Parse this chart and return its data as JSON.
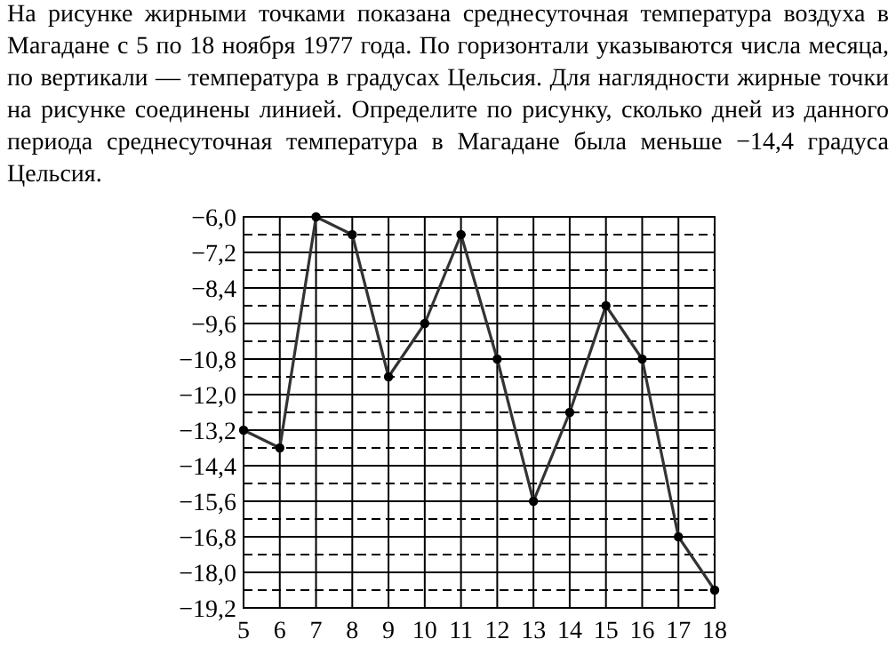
{
  "chart_data": {
    "type": "line",
    "title": "На рисунке жирными точками показана среднесуточная температура воздуха в Магадане с 5 по 18 ноября 1977 года. По горизонтали указываются числа месяца, по вертикали — температура в градусах Цельсия. Для наглядности жирные точки на рисунке соединены линией. Определите по рисунку, сколько дней из данного периода среднесуточная температура в Магадане была меньше −14,4 градуса Цельсия.",
    "x": [
      5,
      6,
      7,
      8,
      9,
      10,
      11,
      12,
      13,
      14,
      15,
      16,
      17,
      18
    ],
    "series": [
      {
        "color": "#333333",
        "values": [
          -13.2,
          -13.8,
          -6.0,
          -6.6,
          -11.4,
          -9.6,
          -6.6,
          -10.8,
          -15.6,
          -12.6,
          -9.0,
          -10.8,
          -16.8,
          -18.6
        ]
      }
    ],
    "xlim": [
      5,
      18
    ],
    "xticks": [
      5,
      6,
      7,
      8,
      9,
      10,
      11,
      12,
      13,
      14,
      15,
      16,
      17,
      18
    ],
    "ylim": [
      -19.2,
      -6.0
    ],
    "yticks": [
      {
        "value": -6.0,
        "label": "−6,0"
      },
      {
        "value": -6.6,
        "label": null
      },
      {
        "value": -7.2,
        "label": "−7,2"
      },
      {
        "value": -7.8,
        "label": null
      },
      {
        "value": -8.4,
        "label": "−8,4"
      },
      {
        "value": -9.0,
        "label": null
      },
      {
        "value": -9.6,
        "label": "−9,6"
      },
      {
        "value": -10.2,
        "label": null
      },
      {
        "value": -10.8,
        "label": "−10,8"
      },
      {
        "value": -11.4,
        "label": null
      },
      {
        "value": -12.0,
        "label": "−12,0"
      },
      {
        "value": -12.6,
        "label": null
      },
      {
        "value": -13.2,
        "label": "−13,2"
      },
      {
        "value": -13.8,
        "label": null
      },
      {
        "value": -14.4,
        "label": "−14,4"
      },
      {
        "value": -15.0,
        "label": null
      },
      {
        "value": -15.6,
        "label": "−15,6"
      },
      {
        "value": -16.2,
        "label": null
      },
      {
        "value": -16.8,
        "label": "−16,8"
      },
      {
        "value": -17.4,
        "label": null
      },
      {
        "value": -18.0,
        "label": "−18,0"
      },
      {
        "value": -18.6,
        "label": null
      },
      {
        "value": -19.2,
        "label": "−19,2"
      }
    ],
    "grid": true,
    "marker": "circle",
    "line_style": "solid"
  }
}
